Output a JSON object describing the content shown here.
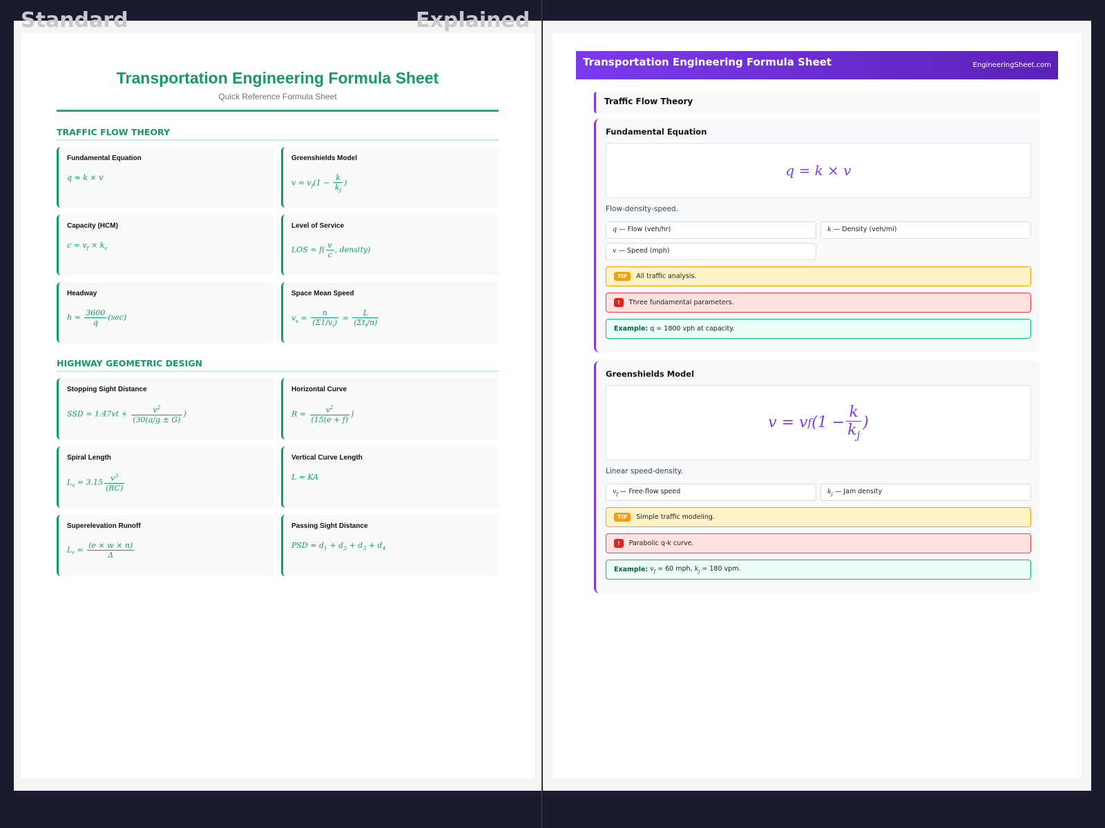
{
  "tabs": [
    "Standard",
    "Explained"
  ],
  "standard": {
    "title": "Transportation Engineering Formula Sheet",
    "subtitle": "Quick Reference Formula Sheet",
    "sections": [
      {
        "title": "TRAFFIC FLOW THEORY",
        "cards": [
          {
            "name": "Fundamental Equation",
            "formula": [
              "q = k × v"
            ]
          },
          {
            "name": "Greenshields Model",
            "formula": [
              "v = v",
              {
                "sub": "f"
              },
              "(1 − ",
              {
                "num": [
                  "k"
                ],
                "den": [
                  "k",
                  {
                    "sub": "j"
                  }
                ]
              },
              ")"
            ]
          },
          {
            "name": "Capacity (HCM)",
            "formula": [
              "c = v",
              {
                "sub": "f"
              },
              " × k",
              {
                "sub": "c"
              }
            ]
          },
          {
            "name": "Level of Service",
            "formula": [
              "LOS = f(",
              {
                "num": [
                  "v"
                ],
                "den": [
                  "c"
                ]
              },
              ", density)"
            ]
          },
          {
            "name": "Headway",
            "formula": [
              "h = ",
              {
                "num": [
                  "3600"
                ],
                "den": [
                  "q"
                ]
              },
              "(sec)"
            ]
          },
          {
            "name": "Space Mean Speed",
            "formula": [
              "v",
              {
                "sub": "s"
              },
              " = ",
              {
                "num": [
                  "n"
                ],
                "den": [
                  "(Σ1/v",
                  {
                    "sub": "i"
                  },
                  ")"
                ]
              },
              " = ",
              {
                "num": [
                  "L"
                ],
                "den": [
                  "(Σt",
                  {
                    "sub": "i"
                  },
                  "/n)"
                ]
              }
            ]
          }
        ]
      },
      {
        "title": "HIGHWAY GEOMETRIC DESIGN",
        "cards": [
          {
            "name": "Stopping Sight Distance",
            "formula": [
              "SSD = 1.47vt + ",
              {
                "num": [
                  "v",
                  {
                    "sup": "2"
                  }
                ],
                "den": [
                  "(30(a/g ± G)"
                ]
              },
              ")"
            ]
          },
          {
            "name": "Horizontal Curve",
            "formula": [
              "R = ",
              {
                "num": [
                  "v",
                  {
                    "sup": "2"
                  }
                ],
                "den": [
                  "(15(e + f)"
                ]
              },
              ")"
            ]
          },
          {
            "name": "Spiral Length",
            "formula": [
              "L",
              {
                "sub": "s"
              },
              " = 3.15",
              {
                "num": [
                  "v",
                  {
                    "sup": "3"
                  }
                ],
                "den": [
                  "(RC)"
                ]
              }
            ]
          },
          {
            "name": "Vertical Curve Length",
            "formula": [
              "L = KA"
            ]
          },
          {
            "name": "Superelevation Runoff",
            "formula": [
              "L",
              {
                "sub": "r"
              },
              " = ",
              {
                "num": [
                  "(e × w × n)"
                ],
                "den": [
                  "Δ"
                ]
              }
            ]
          },
          {
            "name": "Passing Sight Distance",
            "formula": [
              "PSD = d",
              {
                "sub": "1"
              },
              " + d",
              {
                "sub": "2"
              },
              " + d",
              {
                "sub": "3"
              },
              " + d",
              {
                "sub": "4"
              }
            ]
          }
        ]
      }
    ]
  },
  "explained": {
    "title": "Transportation Engineering Formula Sheet",
    "site": "EngineeringSheet.com",
    "section": "Traffic Flow Theory",
    "cards": [
      {
        "name": "Fundamental Equation",
        "formula": [
          "q = k × v"
        ],
        "description": "Flow-density-speed.",
        "variables": [
          {
            "symbol": [
              "q"
            ],
            "text": " — Flow (veh/hr)"
          },
          {
            "symbol": [
              "k"
            ],
            "text": " — Density (veh/mi)"
          },
          {
            "symbol": [
              "v"
            ],
            "text": " — Speed (mph)"
          }
        ],
        "tip_label": "TIP",
        "tip": "All traffic analysis.",
        "warning_icon": "!",
        "warning": "Three fundamental parameters.",
        "example_label": "Example:",
        "example": [
          " q = 1800 vph at capacity."
        ]
      },
      {
        "name": "Greenshields Model",
        "formula": [
          "v = v",
          {
            "sub": "f"
          },
          "(1 − ",
          {
            "num": [
              "k"
            ],
            "den": [
              "k",
              {
                "sub": "j"
              }
            ]
          },
          ")"
        ],
        "description": "Linear speed-density.",
        "variables": [
          {
            "symbol": [
              "v",
              {
                "sub": "f"
              }
            ],
            "text": " — Free-flow speed"
          },
          {
            "symbol": [
              "k",
              {
                "sub": "j"
              }
            ],
            "text": " — Jam density"
          }
        ],
        "tip_label": "TIP",
        "tip": "Simple traffic modeling.",
        "warning_icon": "!",
        "warning": "Parabolic q-k curve.",
        "example_label": "Example:",
        "example": [
          " ",
          {
            "math": [
              "v",
              {
                "sub": "f"
              }
            ]
          },
          " = 60 mph, ",
          {
            "math": [
              "k",
              {
                "sub": "j"
              }
            ]
          },
          " = 180 vpm."
        ]
      }
    ]
  }
}
